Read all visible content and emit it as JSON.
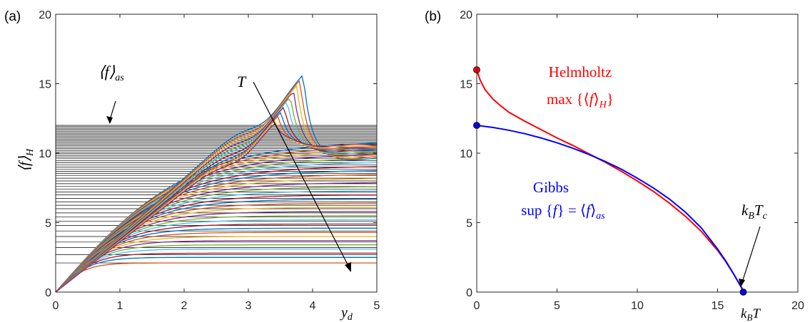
{
  "figure": {
    "panel_a_label": "(a)",
    "panel_b_label": "(b)"
  },
  "chart_data": [
    {
      "type": "line",
      "panel": "(a)",
      "xlabel": "y_d",
      "ylabel": "⟨f⟩_H",
      "xlim": [
        0,
        5
      ],
      "ylim": [
        0,
        20
      ],
      "xticks": [
        0,
        1,
        2,
        3,
        4,
        5
      ],
      "yticks": [
        0,
        5,
        10,
        15,
        20
      ],
      "grid": false,
      "annotations": {
        "asymptote_label": "⟨f⟩_as",
        "temperature_arrow_label": "T"
      },
      "asymptote_levels": [
        2.1,
        2.7,
        3.2,
        3.6,
        4.0,
        4.4,
        4.8,
        5.1,
        5.4,
        5.7,
        6.0,
        6.25,
        6.5,
        6.75,
        7.0,
        7.2,
        7.4,
        7.6,
        7.8,
        8.0,
        8.2,
        8.4,
        8.55,
        8.7,
        8.85,
        9.0,
        9.15,
        9.3,
        9.45,
        9.6,
        9.72,
        9.84,
        9.96,
        10.08,
        10.2,
        10.32,
        10.44,
        10.55,
        10.66,
        10.77,
        10.88,
        10.98,
        11.08,
        11.18,
        11.28,
        11.38,
        11.47,
        11.56,
        11.65,
        11.74,
        11.83,
        11.92,
        12.0
      ],
      "series": [
        {
          "peak_y": 15.8,
          "peak_x": 3.85,
          "end_y": 9.6
        },
        {
          "peak_y": 15.4,
          "peak_x": 3.8,
          "end_y": 9.7
        },
        {
          "peak_y": 15.0,
          "peak_x": 3.75,
          "end_y": 9.8
        },
        {
          "peak_y": 14.6,
          "peak_x": 3.7,
          "end_y": 9.9
        },
        {
          "peak_y": 14.2,
          "peak_x": 3.65,
          "end_y": 10.0
        },
        {
          "peak_y": 13.9,
          "peak_x": 3.6,
          "end_y": 10.1
        },
        {
          "peak_y": 13.5,
          "peak_x": 3.55,
          "end_y": 10.2
        },
        {
          "peak_y": 13.1,
          "peak_x": 3.5,
          "end_y": 10.3
        },
        {
          "peak_y": 12.8,
          "peak_x": 3.45,
          "end_y": 10.4
        },
        {
          "peak_y": 12.5,
          "peak_x": 3.4,
          "end_y": 10.5
        },
        {
          "peak_y": 12.3,
          "peak_x": 3.4,
          "end_y": 10.6
        }
      ],
      "plateau_levels": [
        10.9,
        10.6,
        10.3,
        10.0,
        9.7,
        9.4,
        9.1,
        8.8,
        8.5,
        8.2,
        7.9,
        7.6,
        7.3,
        7.0,
        6.7,
        6.4,
        6.1,
        5.8,
        5.5,
        5.2,
        4.9,
        4.6,
        4.3,
        4.0,
        3.7,
        3.4,
        3.1,
        2.8,
        2.5,
        2.1
      ],
      "color_cycle": [
        "#0072BD",
        "#D95319",
        "#EDB120",
        "#7E2F8E",
        "#77AC30",
        "#4DBEEE",
        "#A2142F"
      ]
    },
    {
      "type": "line",
      "panel": "(b)",
      "xlabel": "k_B T",
      "ylabel": "",
      "xlim": [
        0,
        20
      ],
      "ylim": [
        0,
        20
      ],
      "xticks": [
        0,
        5,
        10,
        15,
        20
      ],
      "yticks": [
        0,
        5,
        10,
        15,
        20
      ],
      "grid": false,
      "series": [
        {
          "name": "Helmholtz max{⟨f⟩_H}",
          "color": "#ff0000",
          "x": [
            0,
            0.2,
            0.5,
            1,
            1.5,
            2,
            3,
            4,
            5,
            6,
            7,
            8,
            9,
            10,
            11,
            12,
            13,
            14,
            15,
            15.5,
            16,
            16.3,
            16.5,
            16.6
          ],
          "y": [
            16.0,
            15.3,
            14.6,
            13.9,
            13.4,
            12.95,
            12.3,
            11.7,
            11.1,
            10.55,
            9.95,
            9.35,
            8.7,
            8.0,
            7.25,
            6.4,
            5.45,
            4.35,
            3.0,
            2.2,
            1.3,
            0.7,
            0.3,
            0.0
          ]
        },
        {
          "name": "Gibbs sup{f} = ⟨f⟩_as",
          "color": "#0000ff",
          "x": [
            0,
            1,
            2,
            3,
            4,
            5,
            6,
            7,
            8,
            9,
            10,
            11,
            12,
            13,
            14,
            15,
            15.5,
            16,
            16.3,
            16.5,
            16.6
          ],
          "y": [
            12.0,
            11.85,
            11.65,
            11.4,
            11.1,
            10.75,
            10.35,
            9.9,
            9.4,
            8.85,
            8.2,
            7.5,
            6.7,
            5.75,
            4.6,
            3.1,
            2.25,
            1.3,
            0.7,
            0.3,
            0.0
          ]
        }
      ],
      "markers": [
        {
          "x": 0,
          "y": 16.0,
          "color": "#ff0000"
        },
        {
          "x": 0,
          "y": 12.0,
          "color": "#0000ff"
        },
        {
          "x": 16.6,
          "y": 0.0,
          "color": "#0000ff"
        }
      ],
      "annotations": {
        "helmholtz_title": "Helmholtz",
        "helmholtz_formula": "max{⟨f⟩_H}",
        "gibbs_title": "Gibbs",
        "gibbs_formula": "sup{f} = ⟨f⟩_as",
        "critical_label": "k_B T_c"
      }
    }
  ]
}
